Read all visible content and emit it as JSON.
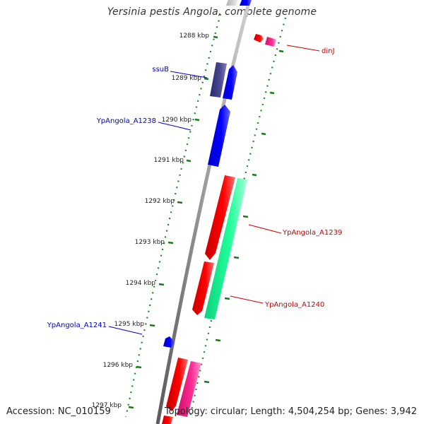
{
  "title": "Yersinia pestis Angola, complete genome",
  "footer": {
    "accession": "Accession: NC_010159",
    "topology": "Topology: circular; Length: 4,504,254 bp; Genes: 3,942"
  },
  "colors": {
    "backbone": "#8a8a8a",
    "tick": "#1a7a1a",
    "forward_cds": "#0000ee",
    "forward_cds_alt": "#3c3c8c",
    "reverse_cds": "#ee0000",
    "reverse_cds_alt": "#ee2288",
    "rna": "#22ee99",
    "label_forward": "#0000cc",
    "label_reverse": "#cc0000",
    "kbp_text": "#222222"
  },
  "kbp_labels": [
    "1288 kbp",
    "1289 kbp",
    "1290 kbp",
    "1291 kbp",
    "1292 kbp",
    "1293 kbp",
    "1294 kbp",
    "1295 kbp",
    "1296 kbp",
    "1297 kbp"
  ],
  "features": [
    {
      "name": "dinJ",
      "strand": "reverse",
      "color": "#ee2288"
    },
    {
      "name": "ssuB",
      "strand": "forward",
      "color": "#3c3c8c"
    },
    {
      "name": "YpAngola_A1238",
      "strand": "forward",
      "color": "#0000ee"
    },
    {
      "name": "YpAngola_A1239",
      "strand": "reverse",
      "color": "#22ee99"
    },
    {
      "name": "YpAngola_A1240",
      "strand": "reverse",
      "color": "#ee0000"
    },
    {
      "name": "YpAngola_A1241",
      "strand": "forward",
      "color": "#0000ee"
    }
  ]
}
